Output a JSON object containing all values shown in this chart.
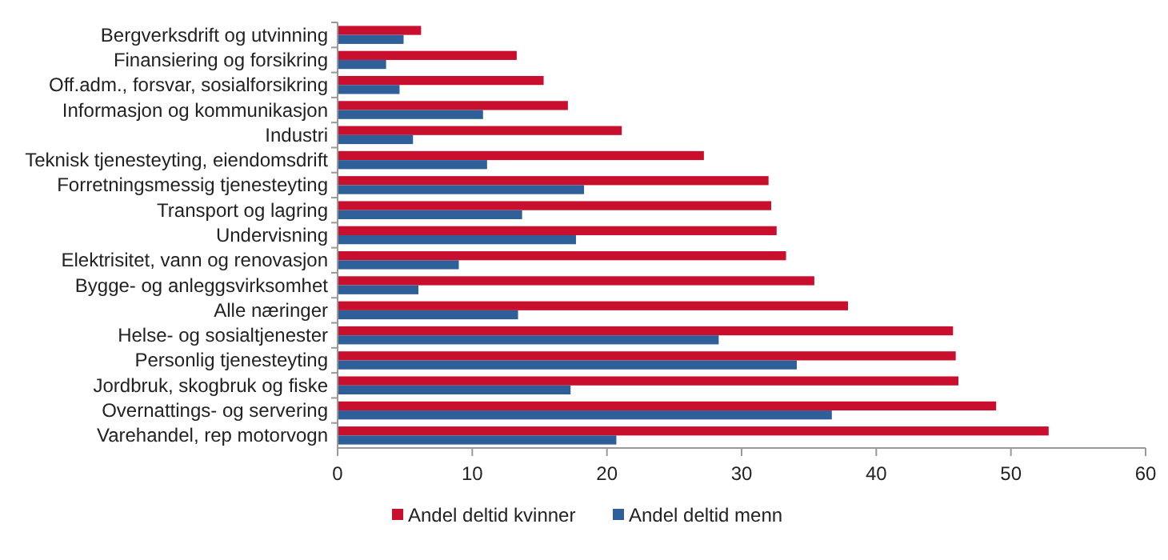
{
  "chart_data": {
    "type": "bar",
    "orientation": "horizontal",
    "categories": [
      "Bergverksdrift og utvinning",
      "Finansiering og forsikring",
      "Off.adm., forsvar, sosialforsikring",
      "Informasjon og kommunikasjon",
      "Industri",
      "Teknisk tjenesteyting, eiendomsdrift",
      "Forretningsmessig tjenesteyting",
      "Transport og lagring",
      "Undervisning",
      "Elektrisitet, vann og renovasjon",
      "Bygge- og anleggsvirksomhet",
      "Alle næringer",
      "Helse- og sosialtjenester",
      "Personlig tjenesteyting",
      "Jordbruk, skogbruk og fiske",
      "Overnattings- og servering",
      "Varehandel, rep motorvogn"
    ],
    "series": [
      {
        "name": "Andel deltid kvinner",
        "color": "#c8102e",
        "values": [
          6.2,
          13.3,
          15.3,
          17.1,
          21.1,
          27.2,
          32.0,
          32.2,
          32.6,
          33.3,
          35.4,
          37.9,
          45.7,
          45.9,
          46.1,
          48.9,
          52.8
        ]
      },
      {
        "name": "Andel deltid menn",
        "color": "#2f5f98",
        "values": [
          4.9,
          3.6,
          4.6,
          10.8,
          5.6,
          11.1,
          18.3,
          13.7,
          17.7,
          9.0,
          6.0,
          13.4,
          28.3,
          34.1,
          17.3,
          36.7,
          20.7
        ]
      }
    ],
    "xlim": [
      0,
      60
    ],
    "xticks": [
      0,
      10,
      20,
      30,
      40,
      50,
      60
    ],
    "grid": false,
    "legend": "bottom"
  }
}
